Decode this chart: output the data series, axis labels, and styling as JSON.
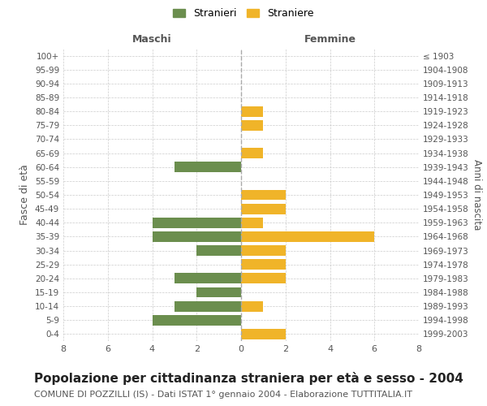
{
  "age_groups": [
    "0-4",
    "5-9",
    "10-14",
    "15-19",
    "20-24",
    "25-29",
    "30-34",
    "35-39",
    "40-44",
    "45-49",
    "50-54",
    "55-59",
    "60-64",
    "65-69",
    "70-74",
    "75-79",
    "80-84",
    "85-89",
    "90-94",
    "95-99",
    "100+"
  ],
  "birth_years": [
    "1999-2003",
    "1994-1998",
    "1989-1993",
    "1984-1988",
    "1979-1983",
    "1974-1978",
    "1969-1973",
    "1964-1968",
    "1959-1963",
    "1954-1958",
    "1949-1953",
    "1944-1948",
    "1939-1943",
    "1934-1938",
    "1929-1933",
    "1924-1928",
    "1919-1923",
    "1914-1918",
    "1909-1913",
    "1904-1908",
    "≤ 1903"
  ],
  "maschi": [
    0,
    4,
    3,
    2,
    3,
    0,
    2,
    4,
    4,
    0,
    0,
    0,
    3,
    0,
    0,
    0,
    0,
    0,
    0,
    0,
    0
  ],
  "femmine": [
    2,
    0,
    1,
    0,
    2,
    2,
    2,
    6,
    1,
    2,
    2,
    0,
    0,
    1,
    0,
    1,
    1,
    0,
    0,
    0,
    0
  ],
  "maschi_color": "#6b8e4e",
  "femmine_color": "#f0b429",
  "bar_height": 0.75,
  "xlim": 8,
  "title": "Popolazione per cittadinanza straniera per età e sesso - 2004",
  "subtitle": "COMUNE DI POZZILLI (IS) - Dati ISTAT 1° gennaio 2004 - Elaborazione TUTTITALIA.IT",
  "ylabel_left": "Fasce di età",
  "ylabel_right": "Anni di nascita",
  "xlabel_maschi": "Maschi",
  "xlabel_femmine": "Femmine",
  "legend_stranieri": "Stranieri",
  "legend_straniere": "Straniere",
  "bg_color": "#ffffff",
  "grid_color": "#cccccc",
  "tick_color": "#555555",
  "title_fontsize": 11,
  "subtitle_fontsize": 8,
  "label_fontsize": 9
}
